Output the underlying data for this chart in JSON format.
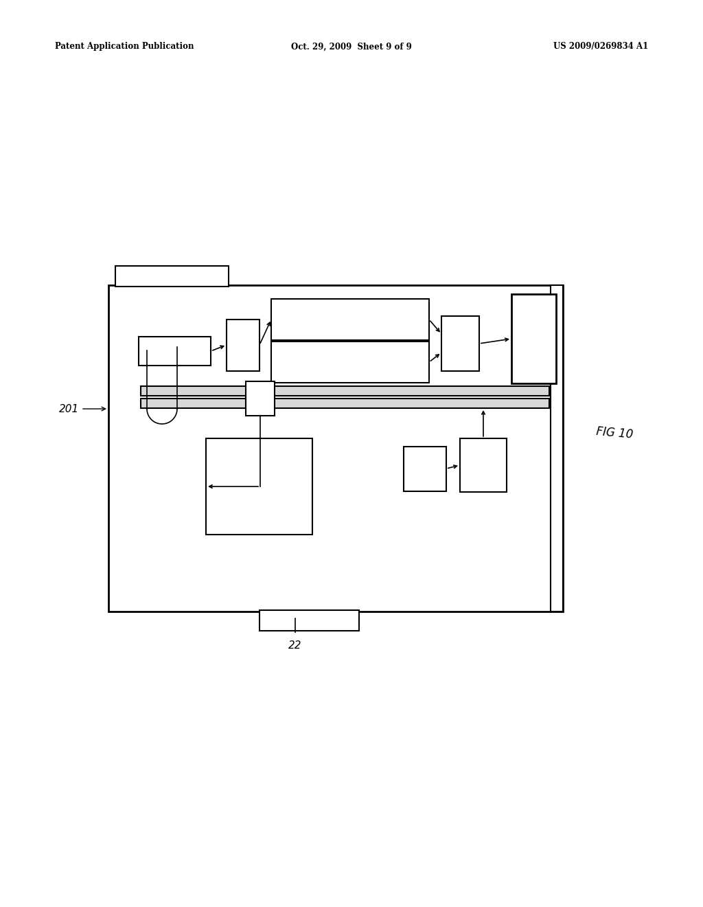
{
  "bg_color": "#ffffff",
  "header_left": "Patent Application Publication",
  "header_center": "Oct. 29, 2009  Sheet 9 of 9",
  "header_right": "US 2009/0269834 A1",
  "fig_label": "FIG 10",
  "ref_201": "201",
  "ref_22": "22"
}
